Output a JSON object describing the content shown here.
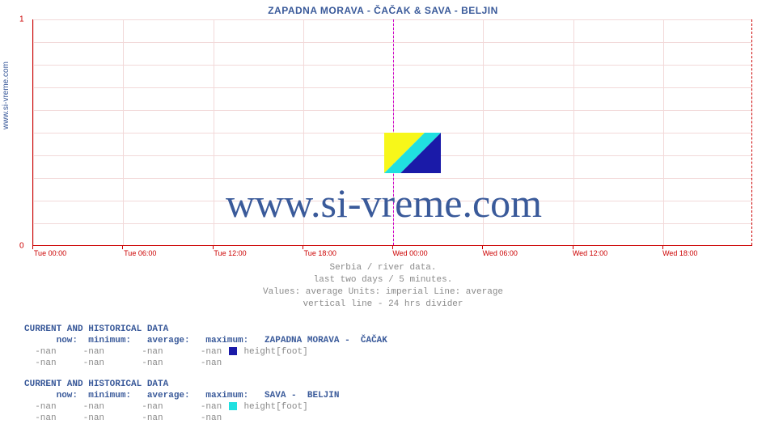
{
  "chart": {
    "title": "ZAPADNA MORAVA -  ČAČAK &  SAVA -  BELJIN",
    "y_label_left": "www.si-vreme.com",
    "watermark": "www.si-vreme.com",
    "ylim": [
      0,
      1
    ],
    "yticks": [
      {
        "pos": 0,
        "label": "0"
      },
      {
        "pos": 1,
        "label": "1"
      }
    ],
    "xticks": [
      {
        "pos": 0.0,
        "label": "Tue 00:00",
        "major": true
      },
      {
        "pos": 0.125,
        "label": "Tue 06:00",
        "major": true
      },
      {
        "pos": 0.25,
        "label": "Tue 12:00",
        "major": true
      },
      {
        "pos": 0.375,
        "label": "Tue 18:00",
        "major": true
      },
      {
        "pos": 0.5,
        "label": "Wed 00:00",
        "major": true
      },
      {
        "pos": 0.625,
        "label": "Wed 06:00",
        "major": true
      },
      {
        "pos": 0.75,
        "label": "Wed 12:00",
        "major": true
      },
      {
        "pos": 0.875,
        "label": "Wed 18:00",
        "major": true
      }
    ],
    "divider_pos": 0.5,
    "hgrid_lines": [
      0.1,
      0.2,
      0.3,
      0.4,
      0.5,
      0.6,
      0.7,
      0.8,
      0.9,
      1.0
    ],
    "subtitle_lines": [
      "Serbia / river data.",
      "last two days / 5 minutes.",
      "Values: average  Units: imperial  Line: average",
      "vertical line - 24 hrs  divider"
    ],
    "colors": {
      "title": "#3a5a9a",
      "axis": "#cc0000",
      "grid": "#f2d9d9",
      "divider": "#cc00cc",
      "watermark": "#3a5a9a",
      "subtitle": "#8a8a8a",
      "series1_swatch": "#1a1aa8",
      "series2_swatch": "#20e0e0",
      "logo_yellow": "#f7f71a",
      "logo_blue": "#1a1aa8",
      "logo_cyan": "#20e0e0"
    }
  },
  "tables": [
    {
      "heading": "CURRENT AND HISTORICAL DATA",
      "col_heads": "      now:  minimum:   average:   maximum:",
      "series_name": "   ZAPADNA MORAVA -  ČAČAK",
      "series_field": " height[foot]",
      "swatch_color": "#1a1aa8",
      "rows": [
        "  -nan     -nan       -nan       -nan",
        "  -nan     -nan       -nan       -nan"
      ]
    },
    {
      "heading": "CURRENT AND HISTORICAL DATA",
      "col_heads": "      now:  minimum:   average:   maximum:",
      "series_name": "   SAVA -  BELJIN",
      "series_field": " height[foot]",
      "swatch_color": "#20e0e0",
      "rows": [
        "  -nan     -nan       -nan       -nan",
        "  -nan     -nan       -nan       -nan"
      ]
    }
  ]
}
